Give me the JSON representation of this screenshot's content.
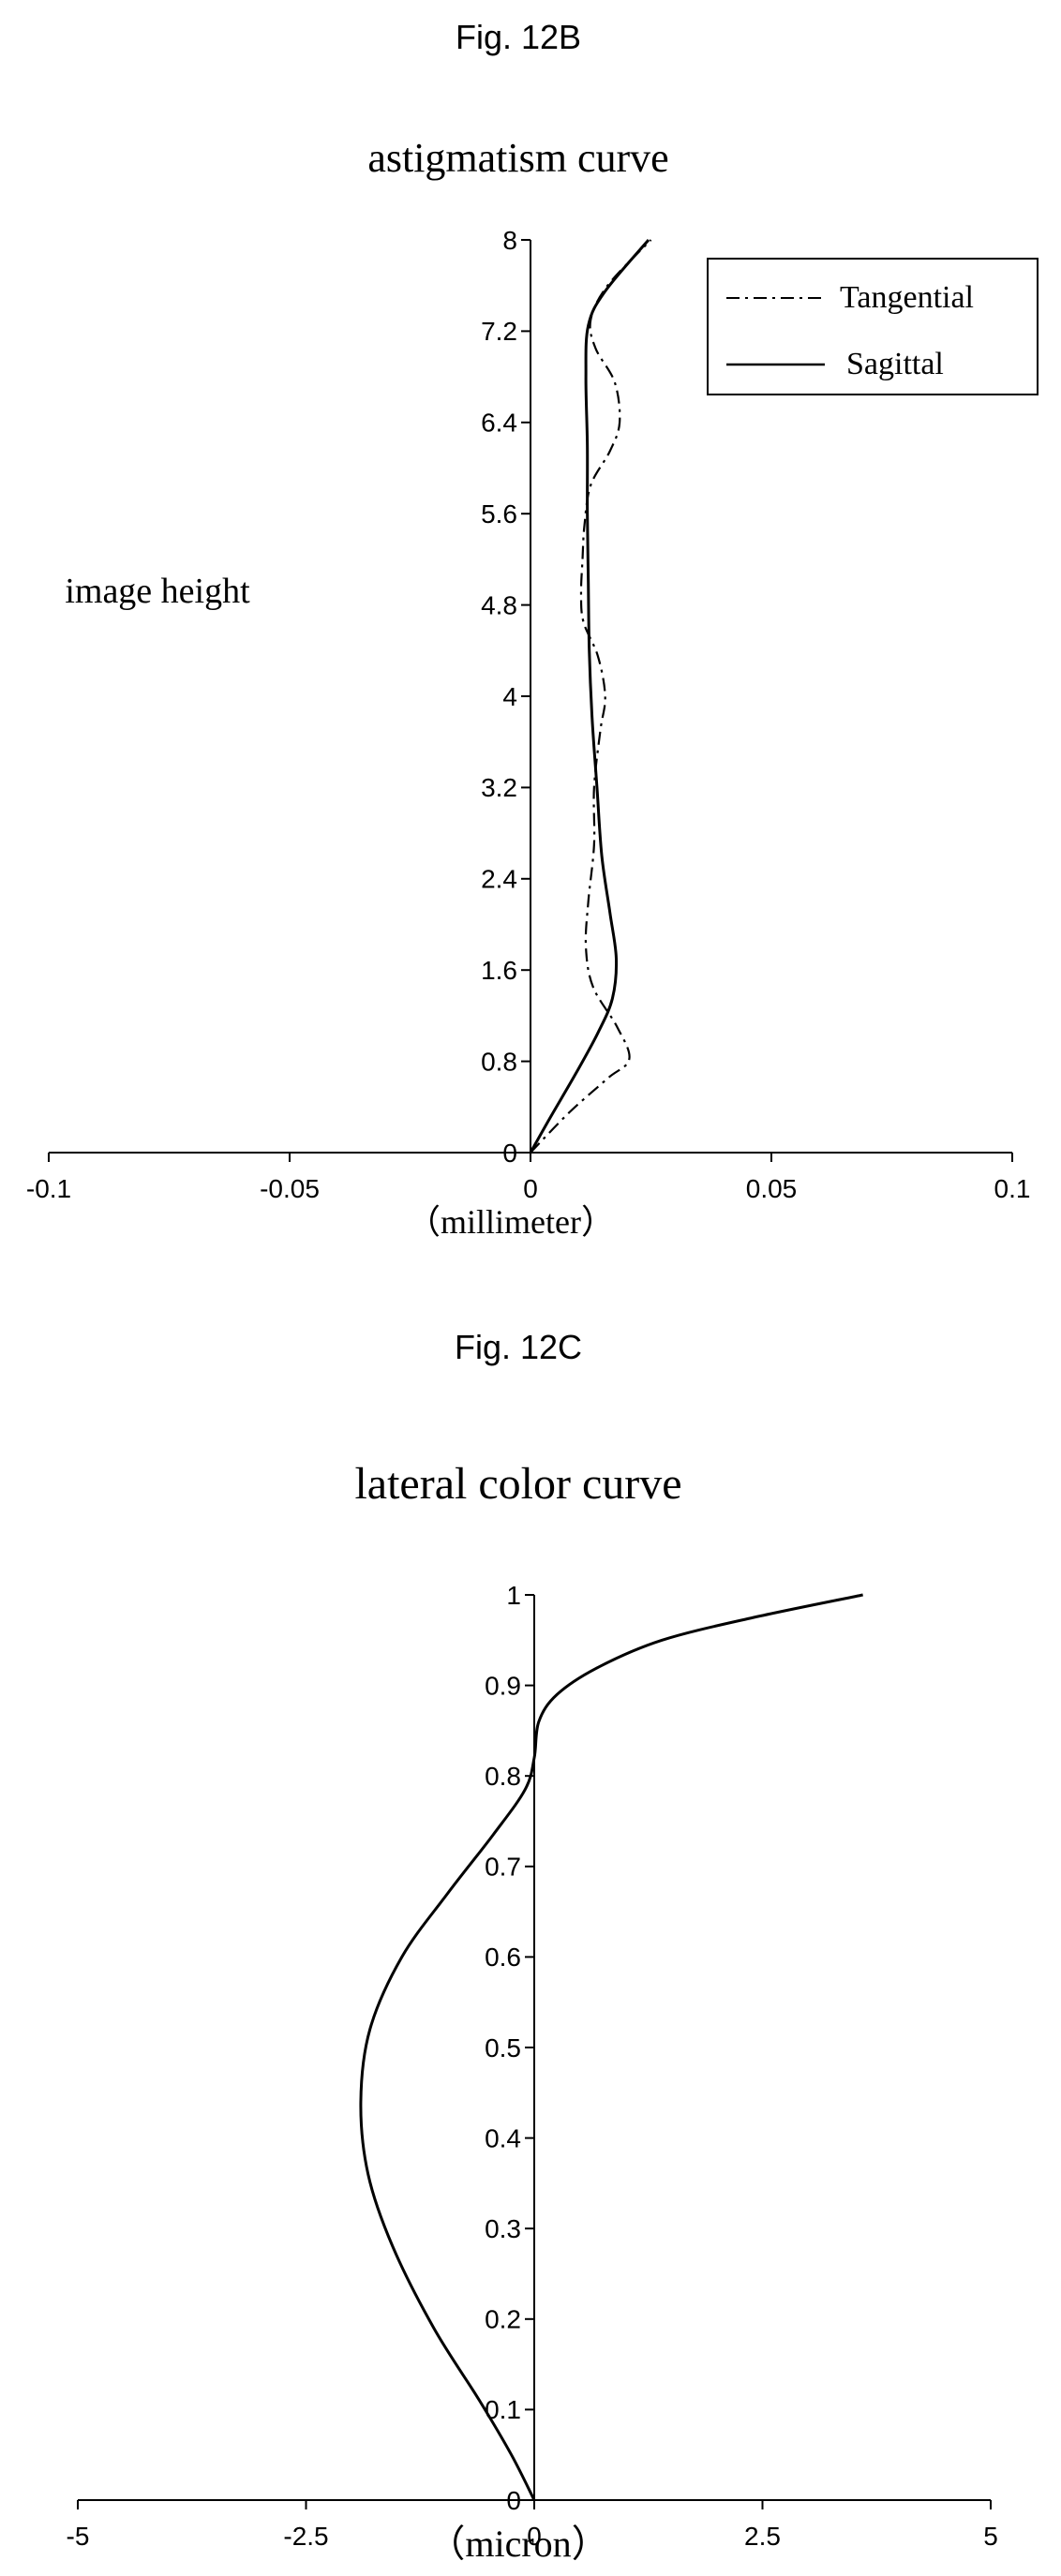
{
  "figures": {
    "fig_b_label": "Fig. 12B",
    "fig_c_label": "Fig. 12C"
  },
  "chart_data": [
    {
      "type": "line",
      "title": "astigmatism curve",
      "ylabel": "image height",
      "xlabel": "（millimeter）",
      "xlim": [
        -0.1,
        0.1
      ],
      "ylim": [
        0,
        8
      ],
      "x_ticks": [
        "-0.1",
        "-0.05",
        "0",
        "0.05",
        "0.1"
      ],
      "y_ticks": [
        "0",
        "0.8",
        "1.6",
        "2.4",
        "3.2",
        "4",
        "4.8",
        "5.6",
        "6.4",
        "7.2",
        "8"
      ],
      "legend": "top-right",
      "series": [
        {
          "name": "Tangential",
          "style": "dash-dot",
          "color": "#000000",
          "points": [
            [
              0,
              0
            ],
            [
              0.008,
              0.35
            ],
            [
              0.016,
              0.65
            ],
            [
              0.0205,
              0.82
            ],
            [
              0.018,
              1.1
            ],
            [
              0.013,
              1.45
            ],
            [
              0.0115,
              1.8
            ],
            [
              0.012,
              2.2
            ],
            [
              0.0132,
              2.7
            ],
            [
              0.0132,
              3.2
            ],
            [
              0.0145,
              3.7
            ],
            [
              0.0155,
              4.0
            ],
            [
              0.014,
              4.35
            ],
            [
              0.011,
              4.65
            ],
            [
              0.0105,
              4.9
            ],
            [
              0.0108,
              5.2
            ],
            [
              0.0112,
              5.5
            ],
            [
              0.0125,
              5.85
            ],
            [
              0.0165,
              6.15
            ],
            [
              0.0185,
              6.4
            ],
            [
              0.0175,
              6.75
            ],
            [
              0.0135,
              7.05
            ],
            [
              0.0125,
              7.3
            ],
            [
              0.016,
              7.6
            ],
            [
              0.025,
              8.0
            ]
          ]
        },
        {
          "name": "Sagittal",
          "style": "solid",
          "color": "#000000",
          "points": [
            [
              0,
              0
            ],
            [
              0.004,
              0.3
            ],
            [
              0.0095,
              0.7
            ],
            [
              0.014,
              1.05
            ],
            [
              0.017,
              1.35
            ],
            [
              0.0178,
              1.7
            ],
            [
              0.0165,
              2.1
            ],
            [
              0.0148,
              2.6
            ],
            [
              0.0138,
              3.2
            ],
            [
              0.0128,
              3.8
            ],
            [
              0.0122,
              4.4
            ],
            [
              0.012,
              5.0
            ],
            [
              0.0118,
              5.6
            ],
            [
              0.0118,
              6.2
            ],
            [
              0.0115,
              6.8
            ],
            [
              0.012,
              7.25
            ],
            [
              0.0155,
              7.55
            ],
            [
              0.0245,
              8.0
            ]
          ]
        }
      ]
    },
    {
      "type": "line",
      "title": "lateral color curve",
      "xlabel": "（micron）",
      "ylabel": "",
      "xlim": [
        -5,
        5
      ],
      "ylim": [
        0,
        1
      ],
      "x_ticks": [
        "-5",
        "-2.5",
        "0",
        "2.5",
        "5"
      ],
      "y_ticks": [
        "0",
        "0.1",
        "0.2",
        "0.3",
        "0.4",
        "0.5",
        "0.6",
        "0.7",
        "0.8",
        "0.9",
        "1"
      ],
      "series": [
        {
          "name": "",
          "style": "solid",
          "color": "#000000",
          "points": [
            [
              0,
              0
            ],
            [
              -0.25,
              0.05
            ],
            [
              -0.6,
              0.11
            ],
            [
              -1.1,
              0.19
            ],
            [
              -1.55,
              0.28
            ],
            [
              -1.82,
              0.36
            ],
            [
              -1.9,
              0.44
            ],
            [
              -1.8,
              0.52
            ],
            [
              -1.45,
              0.6
            ],
            [
              -0.95,
              0.67
            ],
            [
              -0.45,
              0.735
            ],
            [
              -0.1,
              0.785
            ],
            [
              0.0,
              0.82
            ],
            [
              0.05,
              0.86
            ],
            [
              0.25,
              0.89
            ],
            [
              0.7,
              0.92
            ],
            [
              1.4,
              0.95
            ],
            [
              2.4,
              0.975
            ],
            [
              3.6,
              1.0
            ]
          ]
        }
      ]
    }
  ]
}
